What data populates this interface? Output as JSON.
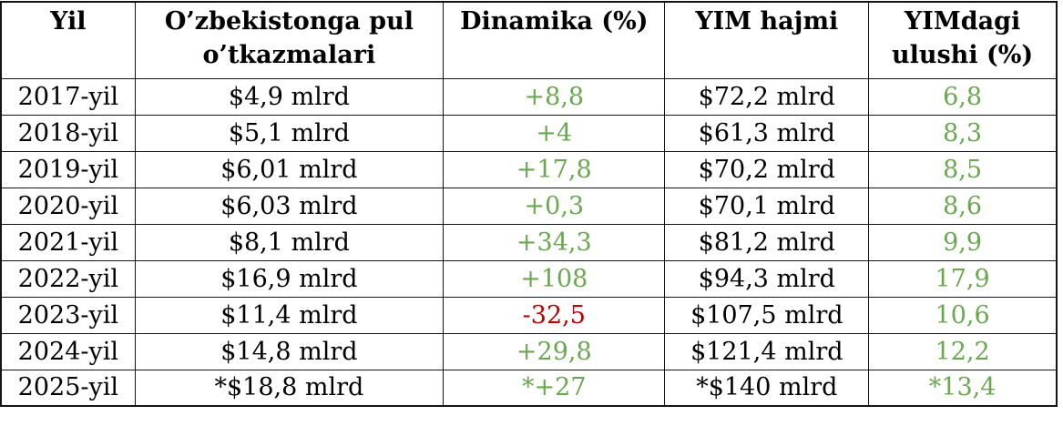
{
  "colors": {
    "green": "#6aa84f",
    "red": "#c00000",
    "text": "#000000",
    "border": "#141414"
  },
  "table": {
    "columns": [
      "Yil",
      "O’zbekistonga pul o’tkazmalari",
      "Dinamika (%)",
      "YIM hajmi",
      "YIMdagi ulushi (%)"
    ],
    "rows": [
      {
        "year": "2017-yil",
        "transfers": "$4,9 mlrd",
        "dynamics": "+8,8",
        "dynamics_color": "green",
        "gdp": "$72,2 mlrd",
        "share": "6,8",
        "share_color": "green"
      },
      {
        "year": "2018-yil",
        "transfers": "$5,1 mlrd",
        "dynamics": "+4",
        "dynamics_color": "green",
        "gdp": "$61,3 mlrd",
        "share": "8,3",
        "share_color": "green"
      },
      {
        "year": "2019-yil",
        "transfers": "$6,01 mlrd",
        "dynamics": "+17,8",
        "dynamics_color": "green",
        "gdp": "$70,2 mlrd",
        "share": "8,5",
        "share_color": "green"
      },
      {
        "year": "2020-yil",
        "transfers": "$6,03 mlrd",
        "dynamics": "+0,3",
        "dynamics_color": "green",
        "gdp": "$70,1 mlrd",
        "share": "8,6",
        "share_color": "green"
      },
      {
        "year": "2021-yil",
        "transfers": "$8,1 mlrd",
        "dynamics": "+34,3",
        "dynamics_color": "green",
        "gdp": "$81,2 mlrd",
        "share": "9,9",
        "share_color": "green"
      },
      {
        "year": "2022-yil",
        "transfers": "$16,9 mlrd",
        "dynamics": "+108",
        "dynamics_color": "green",
        "gdp": "$94,3 mlrd",
        "share": "17,9",
        "share_color": "green"
      },
      {
        "year": "2023-yil",
        "transfers": "$11,4 mlrd",
        "dynamics": "-32,5",
        "dynamics_color": "red",
        "gdp": "$107,5 mlrd",
        "share": "10,6",
        "share_color": "green"
      },
      {
        "year": "2024-yil",
        "transfers": "$14,8 mlrd",
        "dynamics": "+29,8",
        "dynamics_color": "green",
        "gdp": "$121,4 mlrd",
        "share": "12,2",
        "share_color": "green"
      },
      {
        "year": "2025-yil",
        "transfers": "*$18,8 mlrd",
        "dynamics": "*+27",
        "dynamics_color": "green",
        "gdp": "*$140 mlrd",
        "share": "*13,4",
        "share_color": "green"
      }
    ]
  },
  "chart_data": {
    "type": "table",
    "columns": [
      "Yil",
      "O’zbekistonga pul o’tkazmalari",
      "Dinamika (%)",
      "YIM hajmi",
      "YIMdagi ulushi (%)"
    ],
    "categories": [
      "2017-yil",
      "2018-yil",
      "2019-yil",
      "2020-yil",
      "2021-yil",
      "2022-yil",
      "2023-yil",
      "2024-yil",
      "2025-yil"
    ],
    "series": [
      {
        "name": "O’zbekistonga pul o’tkazmalari ($ mlrd)",
        "values": [
          4.9,
          5.1,
          6.01,
          6.03,
          8.1,
          16.9,
          11.4,
          14.8,
          18.8
        ]
      },
      {
        "name": "Dinamika (%)",
        "values": [
          8.8,
          4,
          17.8,
          0.3,
          34.3,
          108,
          -32.5,
          29.8,
          27
        ]
      },
      {
        "name": "YIM hajmi ($ mlrd)",
        "values": [
          72.2,
          61.3,
          70.2,
          70.1,
          81.2,
          94.3,
          107.5,
          121.4,
          140
        ]
      },
      {
        "name": "YIMdagi ulushi (%)",
        "values": [
          6.8,
          8.3,
          8.5,
          8.6,
          9.9,
          17.9,
          10.6,
          12.2,
          13.4
        ]
      }
    ]
  }
}
